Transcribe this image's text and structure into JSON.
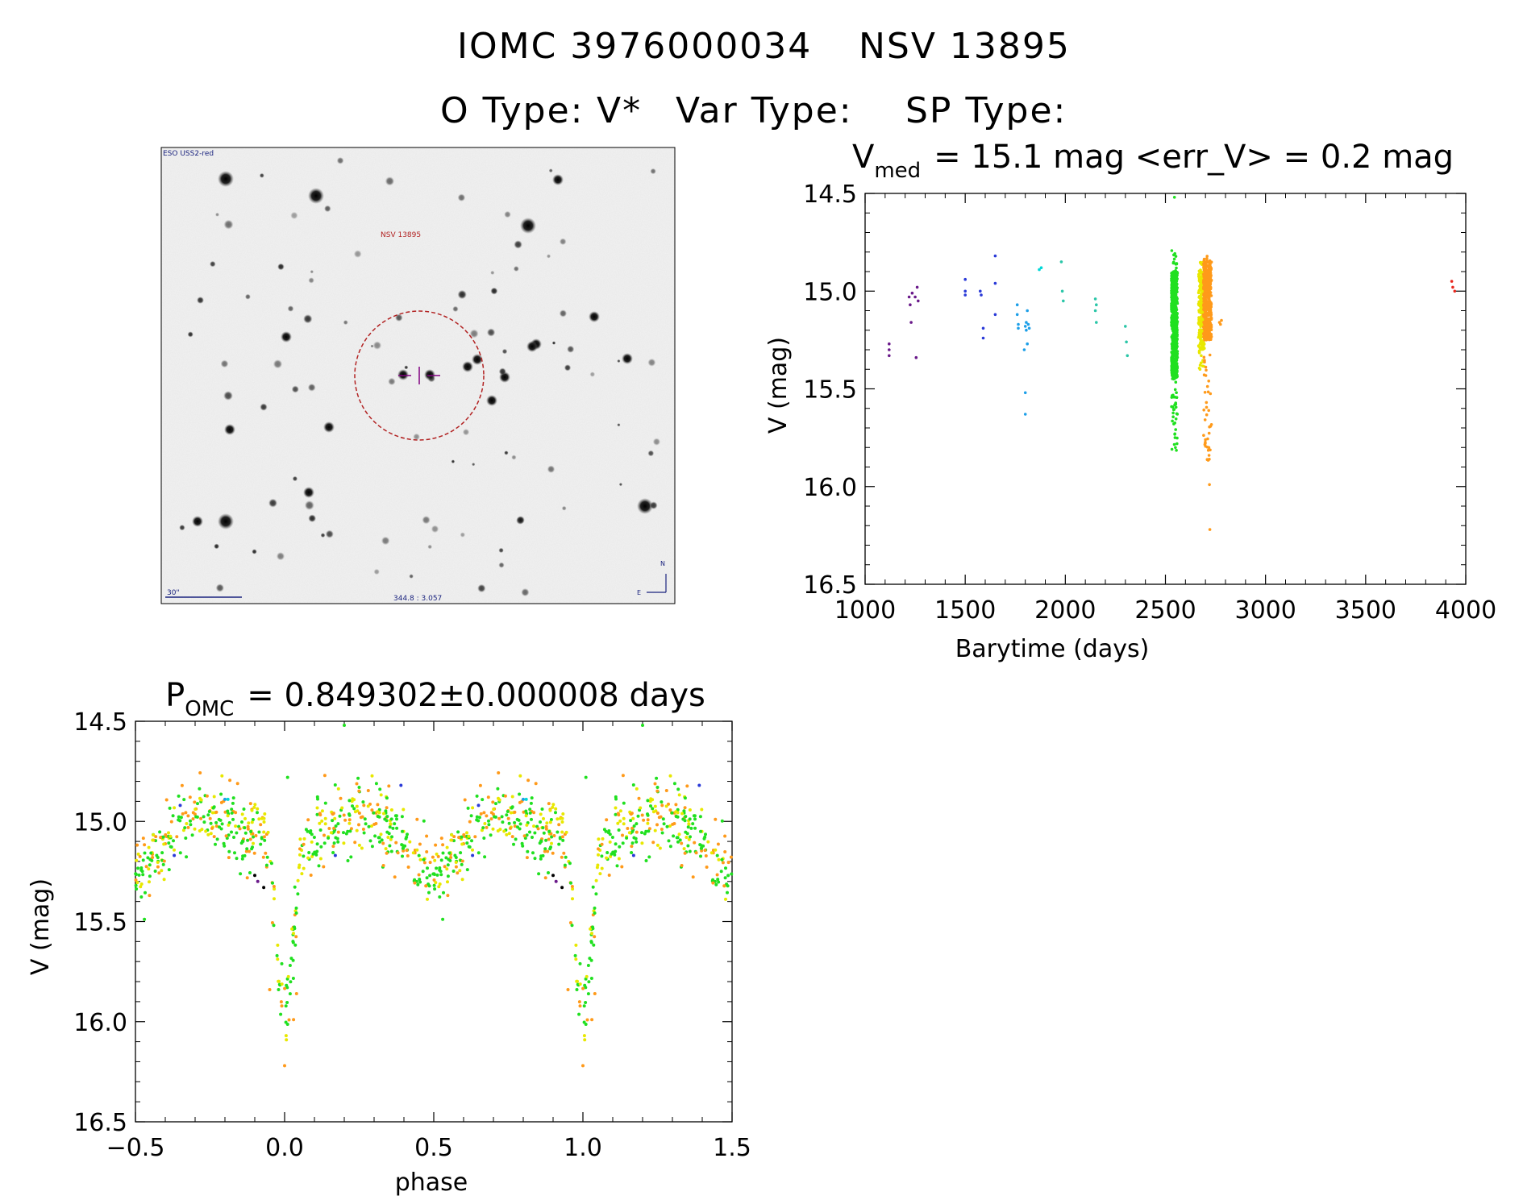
{
  "header": {
    "title_id": "IOMC 3976000034",
    "title_name": "NSV 13895",
    "otype_label": "O Type:",
    "otype_value": "V*",
    "vartype_label": "Var Type:",
    "sptype_label": "SP Type:"
  },
  "image_panel": {
    "survey_label": "ESO USS2-red",
    "target_label": "NSV 13895",
    "scale_label": "30\"",
    "coord_label": "344.8 : 3.057",
    "north_label": "N",
    "east_label": "E"
  },
  "chart_data": [
    {
      "type": "scatter",
      "title_main": "V",
      "title_sub": "med",
      "title_rest": "= 15.1 mag <err_V> = 0.2 mag",
      "xlabel": "Barytime (days)",
      "ylabel": "V (mag)",
      "xlim": [
        1000,
        4000
      ],
      "ylim": [
        16.5,
        14.5
      ],
      "xticks": [
        "1000",
        "1500",
        "2000",
        "2500",
        "3000",
        "3500",
        "4000"
      ],
      "yticks": [
        "14.5",
        "15.0",
        "15.5",
        "16.0",
        "16.5"
      ],
      "colors": {
        "purple": "#6a1a8a",
        "blue": "#2a3ad8",
        "skyblue": "#1d9fe8",
        "cyan": "#00d8d8",
        "teal": "#2bc6a8",
        "green": "#20e020",
        "yellow": "#e8e800",
        "orange": "#ff9a1a",
        "red": "#e8281e"
      },
      "series": [
        {
          "color": "purple",
          "x": [
            1120,
            1120,
            1120,
            1220,
            1225,
            1230,
            1235,
            1250,
            1255,
            1260,
            1265
          ],
          "y": [
            15.27,
            15.3,
            15.33,
            15.03,
            15.07,
            15.16,
            15.01,
            15.03,
            15.34,
            14.98,
            15.05
          ]
        },
        {
          "color": "blue",
          "x": [
            1500,
            1500,
            1500,
            1575,
            1580,
            1590,
            1590,
            1650,
            1650,
            1650
          ],
          "y": [
            14.94,
            15.0,
            15.02,
            15.0,
            15.02,
            15.19,
            15.24,
            14.82,
            14.96,
            15.12
          ]
        },
        {
          "color": "skyblue",
          "x": [
            1760,
            1760,
            1765,
            1765,
            1795,
            1800,
            1800,
            1800,
            1805,
            1805,
            1810,
            1810,
            1815,
            1820
          ],
          "y": [
            15.07,
            15.12,
            15.17,
            15.19,
            15.3,
            15.52,
            15.63,
            15.18,
            15.16,
            15.2,
            15.1,
            15.27,
            15.17,
            15.19
          ]
        },
        {
          "color": "cyan",
          "x": [
            1870,
            1880
          ],
          "y": [
            14.89,
            14.88
          ]
        },
        {
          "color": "teal",
          "x": [
            1980,
            1985,
            1990,
            2150,
            2150,
            2155,
            2155,
            2300,
            2305,
            2310
          ],
          "y": [
            14.85,
            15.0,
            15.05,
            15.04,
            15.1,
            15.07,
            15.16,
            15.18,
            15.26,
            15.33
          ]
        },
        {
          "color": "red",
          "x": [
            3930,
            3935,
            3945
          ],
          "y": [
            14.95,
            14.98,
            15.0
          ]
        }
      ],
      "dense_bands": [
        {
          "color": "green",
          "x": [
            2530,
            2560
          ],
          "y_core": [
            14.9,
            15.45
          ],
          "y_full": [
            14.78,
            15.82
          ],
          "n": 620,
          "extremes": [
            [
              2545,
              14.52
            ],
            [
              2550,
              15.8
            ],
            [
              2548,
              15.75
            ],
            [
              2542,
              15.68
            ]
          ]
        },
        {
          "color": "yellow",
          "x": [
            2665,
            2695
          ],
          "y_core": [
            14.9,
            15.3
          ],
          "y_full": [
            14.85,
            15.4
          ],
          "n": 260,
          "extremes": []
        },
        {
          "color": "orange",
          "x": [
            2690,
            2730
          ],
          "y_core": [
            14.85,
            15.25
          ],
          "y_full": [
            14.78,
            15.9
          ],
          "n": 480,
          "extremes": [
            [
              2722,
              16.22
            ],
            [
              2720,
              15.99
            ],
            [
              2718,
              15.84
            ],
            [
              2719,
              15.86
            ],
            [
              2770,
              15.16
            ],
            [
              2775,
              15.17
            ],
            [
              2780,
              15.15
            ]
          ]
        }
      ]
    },
    {
      "type": "scatter",
      "title_main": "P",
      "title_sub": "OMC",
      "title_rest": "= 0.849302±0.000008 days",
      "xlabel": "phase",
      "ylabel": "V (mag)",
      "xlim": [
        -0.5,
        1.5
      ],
      "ylim": [
        16.5,
        14.5
      ],
      "xticks": [
        "−0.5",
        "0.0",
        "0.5",
        "1.0",
        "1.5"
      ],
      "yticks": [
        "14.5",
        "15.0",
        "15.5",
        "16.0",
        "16.5"
      ],
      "colors": {
        "purple": "#6a1a8a",
        "blue": "#2a3ad8",
        "skyblue": "#1d9fe8",
        "cyan": "#00d8d8",
        "green": "#20e020",
        "yellow": "#e8e800",
        "orange": "#ff9a1a",
        "red": "#e8281e",
        "black": "#000000"
      },
      "light_curve": {
        "period_folded": true,
        "minimum_phase": 0.0,
        "minimum_mag": 16.22,
        "baseline_mag": 15.05,
        "secondary_min_phase": 0.5,
        "secondary_min_mag": 15.25,
        "n_points": 560,
        "extremes": [
          [
            0.2,
            14.52
          ],
          [
            0.0,
            16.22
          ],
          [
            0.03,
            15.99
          ],
          [
            -0.05,
            15.84
          ],
          [
            0.04,
            15.86
          ],
          [
            0.01,
            14.78
          ],
          [
            -0.1,
            15.27
          ],
          [
            -0.09,
            15.3
          ],
          [
            -0.07,
            15.33
          ],
          [
            -0.35,
            14.92
          ],
          [
            -0.37,
            15.17
          ],
          [
            -0.2,
            14.89
          ],
          [
            -0.19,
            14.89
          ],
          [
            0.17,
            15.17
          ],
          [
            0.39,
            14.82
          ]
        ]
      }
    }
  ]
}
